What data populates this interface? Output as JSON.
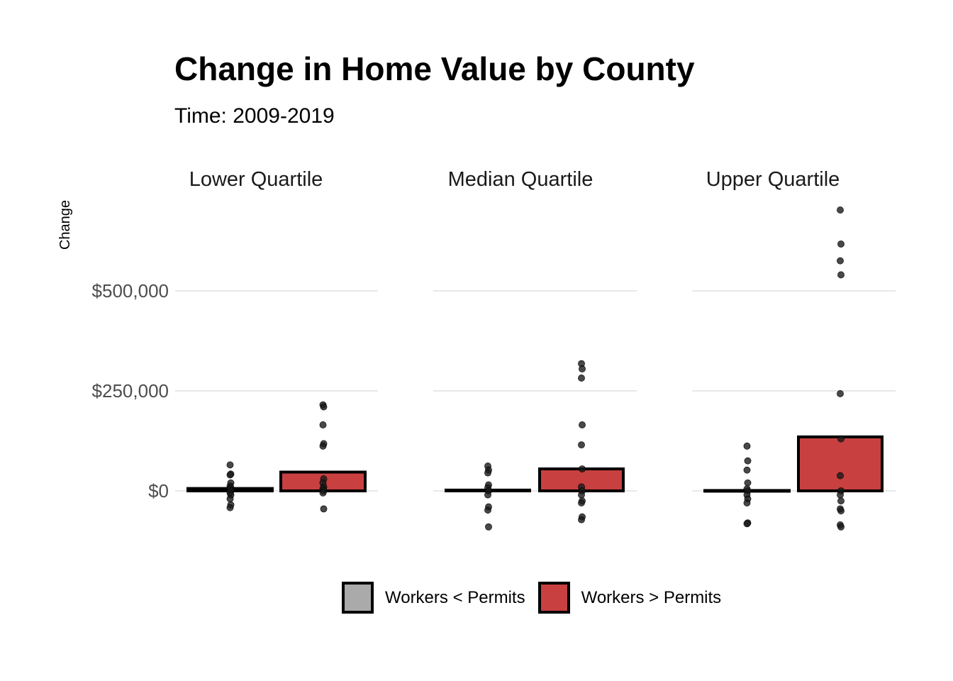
{
  "chart_data": {
    "type": "bar",
    "title": "Change in Home Value by County",
    "subtitle": "Time: 2009-2019",
    "ylabel": "Change",
    "xlabel": "",
    "ylim": [
      -130000,
      700000
    ],
    "y_ticks": [
      {
        "value": 0,
        "label": "$0"
      },
      {
        "value": 250000,
        "label": "$250,000"
      },
      {
        "value": 500000,
        "label": "$500,000"
      }
    ],
    "grid": "horizontal major",
    "legend_position": "bottom",
    "series": [
      {
        "name": "Workers < Permits",
        "color": "#aaaaaa"
      },
      {
        "name": "Workers > Permits",
        "color": "#c84040"
      }
    ],
    "panels": [
      {
        "label": "Lower Quartile",
        "bars": [
          {
            "series": "Workers < Permits",
            "value": 6000
          },
          {
            "series": "Workers > Permits",
            "value": 47000
          }
        ],
        "points": [
          {
            "series": "Workers < Permits",
            "values": [
              65000,
              42000,
              40000,
              20000,
              12000,
              8000,
              4000,
              0,
              -5000,
              -10000,
              -20000,
              -35000,
              -42000
            ]
          },
          {
            "series": "Workers > Permits",
            "values": [
              215000,
              210000,
              165000,
              118000,
              112000,
              30000,
              20000,
              10000,
              5000,
              0,
              -5000,
              -45000
            ]
          }
        ]
      },
      {
        "label": "Median Quartile",
        "bars": [
          {
            "series": "Workers < Permits",
            "value": 2000
          },
          {
            "series": "Workers > Permits",
            "value": 55000
          }
        ],
        "points": [
          {
            "series": "Workers < Permits",
            "values": [
              62000,
              52000,
              45000,
              15000,
              8000,
              0,
              -10000,
              -40000,
              -48000,
              -90000
            ]
          },
          {
            "series": "Workers > Permits",
            "values": [
              318000,
              305000,
              282000,
              165000,
              115000,
              55000,
              10000,
              0,
              -10000,
              -25000,
              -30000,
              -65000,
              -72000
            ]
          }
        ]
      },
      {
        "label": "Upper Quartile",
        "bars": [
          {
            "series": "Workers < Permits",
            "value": 1000
          },
          {
            "series": "Workers > Permits",
            "value": 135000
          }
        ],
        "points": [
          {
            "series": "Workers < Permits",
            "values": [
              112000,
              75000,
              52000,
              20000,
              5000,
              0,
              -10000,
              -20000,
              -30000,
              -80000,
              -82000
            ]
          },
          {
            "series": "Workers > Permits",
            "values": [
              702000,
              617000,
              575000,
              540000,
              243000,
              130000,
              38000,
              0,
              -10000,
              -25000,
              -45000,
              -50000,
              -85000,
              -90000
            ]
          }
        ]
      }
    ]
  }
}
